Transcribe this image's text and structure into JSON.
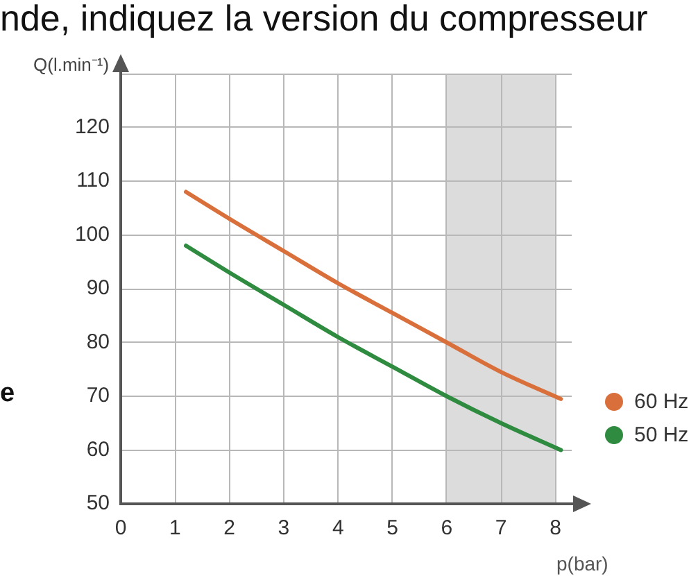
{
  "chart_data": {
    "type": "line",
    "xlabel": "p(bar)",
    "ylabel": "Q(l.min⁻¹)",
    "annotations": [
      "nde, indiquez la version du compresseur",
      "e"
    ],
    "series": [
      {
        "name": "60 Hz",
        "color": "#d9703b",
        "x": [
          1.2,
          2,
          3,
          4,
          5,
          6,
          7,
          8.1
        ],
        "values": [
          108,
          103,
          97,
          91,
          85.5,
          80,
          74.5,
          69.5
        ]
      },
      {
        "name": "50 Hz",
        "color": "#2e8b3f",
        "x": [
          1.2,
          2,
          3,
          4,
          5,
          6,
          7,
          8.1
        ],
        "values": [
          98,
          93,
          87,
          81,
          75.5,
          70,
          65,
          60
        ]
      }
    ],
    "xlim": [
      0,
      8.3
    ],
    "xticks": [
      0,
      1,
      2,
      3,
      4,
      5,
      6,
      7,
      8
    ],
    "ylim": [
      50,
      130
    ],
    "yticks": [
      50,
      60,
      70,
      80,
      90,
      100,
      110,
      120,
      {
        "value": 130,
        "label": null
      }
    ],
    "bands": [
      {
        "axis": "x",
        "from": 6,
        "to": 8,
        "color": "#dcdcdc"
      }
    ],
    "grid": true,
    "legend": "right"
  }
}
